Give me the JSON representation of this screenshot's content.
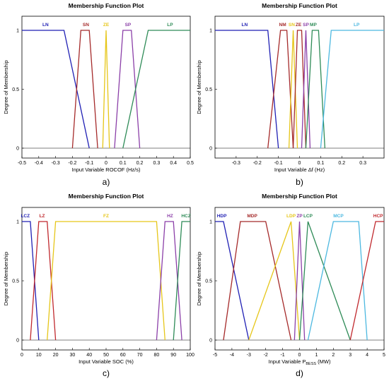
{
  "chart_data": [
    {
      "type": "line",
      "caption": "a)",
      "title": "Membership Function Plot",
      "xlabel": "Input Variable ROCOF (Hz/s)",
      "ylabel": "Degree of Membership",
      "xlim": [
        -0.5,
        0.5
      ],
      "ylim": [
        0,
        1
      ],
      "xticks": [
        "-0.5",
        "-0.4",
        "-0.3",
        "-0.2",
        "-0.1",
        "0",
        "0.1",
        "0.2",
        "0.3",
        "0.4",
        "0.5"
      ],
      "yticks": [
        "0",
        "0.5",
        "1"
      ],
      "series": [
        {
          "name": "LN",
          "color": "#1f1fb4",
          "x": [
            -0.5,
            -0.25,
            -0.1
          ],
          "y": [
            1,
            1,
            0
          ],
          "label_x": -0.36
        },
        {
          "name": "SN",
          "color": "#a52a2a",
          "x": [
            -0.2,
            -0.15,
            -0.1,
            -0.05
          ],
          "y": [
            0,
            1,
            1,
            0
          ],
          "label_x": -0.12
        },
        {
          "name": "ZE",
          "color": "#e6c619",
          "x": [
            -0.02,
            0,
            0.02
          ],
          "y": [
            0,
            1,
            0
          ],
          "label_x": 0.0
        },
        {
          "name": "SP",
          "color": "#8b3fa8",
          "x": [
            0.05,
            0.1,
            0.15,
            0.2
          ],
          "y": [
            0,
            1,
            1,
            0
          ],
          "label_x": 0.13
        },
        {
          "name": "LP",
          "color": "#2e8b57",
          "x": [
            0.1,
            0.25,
            0.5
          ],
          "y": [
            0,
            1,
            1
          ],
          "label_x": 0.38
        }
      ]
    },
    {
      "type": "line",
      "caption": "b)",
      "title": "Membership Function Plot",
      "xlabel": "Input Variable Δf (Hz)",
      "ylabel": "Degree of Membership",
      "xlim": [
        -0.4,
        0.4
      ],
      "ylim": [
        0,
        1
      ],
      "xticks": [
        "-0.3",
        "-0.2",
        "-0.1",
        "0",
        "0.1",
        "0.2",
        "0.3"
      ],
      "yticks": [
        "0",
        "0.5",
        "1"
      ],
      "series": [
        {
          "name": "LN",
          "color": "#1f1fb4",
          "x": [
            -0.4,
            -0.15,
            -0.1
          ],
          "y": [
            1,
            1,
            0
          ],
          "label_x": -0.26
        },
        {
          "name": "NM",
          "color": "#a52a2a",
          "x": [
            -0.15,
            -0.09,
            -0.06,
            -0.03
          ],
          "y": [
            0,
            1,
            1,
            0
          ],
          "label_x": -0.08
        },
        {
          "name": "SN",
          "color": "#e6c619",
          "x": [
            -0.05,
            -0.03,
            -0.01
          ],
          "y": [
            0,
            1,
            0
          ],
          "label_x": -0.037
        },
        {
          "name": "ZE",
          "color": "#a52a2a",
          "x": [
            -0.03,
            -0.01,
            0.01,
            0.03
          ],
          "y": [
            0,
            1,
            1,
            0
          ],
          "label_x": -0.005
        },
        {
          "name": "SP",
          "color": "#8b3fa8",
          "x": [
            0.01,
            0.03,
            0.05
          ],
          "y": [
            0,
            1,
            0
          ],
          "label_x": 0.03
        },
        {
          "name": "MP",
          "color": "#2e8b57",
          "x": [
            0.03,
            0.06,
            0.09,
            0.12
          ],
          "y": [
            0,
            1,
            1,
            0
          ],
          "label_x": 0.065
        },
        {
          "name": "LP",
          "color": "#4cb8e0",
          "x": [
            0.1,
            0.15,
            0.4
          ],
          "y": [
            0,
            1,
            1
          ],
          "label_x": 0.27
        }
      ]
    },
    {
      "type": "line",
      "caption": "c)",
      "title": "Membership Function Plot",
      "xlabel": "Input Variable SOC (%)",
      "ylabel": "Degree of Membership",
      "xlim": [
        0,
        100
      ],
      "ylim": [
        0,
        1
      ],
      "xticks": [
        "0",
        "10",
        "20",
        "30",
        "40",
        "50",
        "60",
        "70",
        "80",
        "90",
        "100"
      ],
      "yticks": [
        "0",
        "0.5",
        "1"
      ],
      "series": [
        {
          "name": "LCZ",
          "color": "#1f1fb4",
          "x": [
            0,
            5,
            10
          ],
          "y": [
            1,
            1,
            0
          ],
          "label_x": 2
        },
        {
          "name": "LZ",
          "color": "#c0282d",
          "x": [
            5,
            10,
            15,
            20
          ],
          "y": [
            0,
            1,
            1,
            0
          ],
          "label_x": 12
        },
        {
          "name": "FZ",
          "color": "#e6c619",
          "x": [
            15,
            20,
            80,
            85
          ],
          "y": [
            0,
            1,
            1,
            0
          ],
          "label_x": 50
        },
        {
          "name": "HZ",
          "color": "#8b3fa8",
          "x": [
            80,
            85,
            90,
            95
          ],
          "y": [
            0,
            1,
            1,
            0
          ],
          "label_x": 88
        },
        {
          "name": "HCZ",
          "color": "#2e8b57",
          "x": [
            90,
            95,
            100
          ],
          "y": [
            0,
            1,
            1
          ],
          "label_x": 97.5
        }
      ]
    },
    {
      "type": "line",
      "caption": "d)",
      "title": "Membership Function Plot",
      "xlabel": "Input Variable P",
      "xlabel_sub": "BESS",
      "xlabel_unit": " (MW)",
      "ylabel": "Degree of Membership",
      "xlim": [
        -5,
        5
      ],
      "ylim": [
        0,
        1
      ],
      "xticks": [
        "-5",
        "-4",
        "-3",
        "-2",
        "-1",
        "0",
        "1",
        "2",
        "3",
        "4",
        "5"
      ],
      "yticks": [
        "0",
        "0.5",
        "1"
      ],
      "series": [
        {
          "name": "HDP",
          "color": "#1f1fb4",
          "x": [
            -5,
            -4.5,
            -3
          ],
          "y": [
            1,
            1,
            0
          ],
          "label_x": -4.6
        },
        {
          "name": "MDP",
          "color": "#a52a2a",
          "x": [
            -4.5,
            -3.5,
            -2,
            -0.5
          ],
          "y": [
            0,
            1,
            1,
            0
          ],
          "label_x": -2.8
        },
        {
          "name": "LDP",
          "color": "#e6c619",
          "x": [
            -3,
            -0.5,
            0
          ],
          "y": [
            0,
            1,
            0
          ],
          "label_x": -0.5
        },
        {
          "name": "ZP",
          "color": "#8b3fa8",
          "x": [
            -0.3,
            0,
            0.3
          ],
          "y": [
            0,
            1,
            0
          ],
          "label_x": 0
        },
        {
          "name": "LCP",
          "color": "#2e8b57",
          "x": [
            0,
            0.5,
            3
          ],
          "y": [
            0,
            1,
            0
          ],
          "label_x": 0.5
        },
        {
          "name": "MCP",
          "color": "#4cb8e0",
          "x": [
            0.5,
            2,
            3.5,
            4
          ],
          "y": [
            0,
            1,
            1,
            0
          ],
          "label_x": 2.3
        },
        {
          "name": "HCP",
          "color": "#c0282d",
          "x": [
            3,
            4.5,
            5
          ],
          "y": [
            0,
            1,
            1
          ],
          "label_x": 4.65
        }
      ]
    }
  ]
}
